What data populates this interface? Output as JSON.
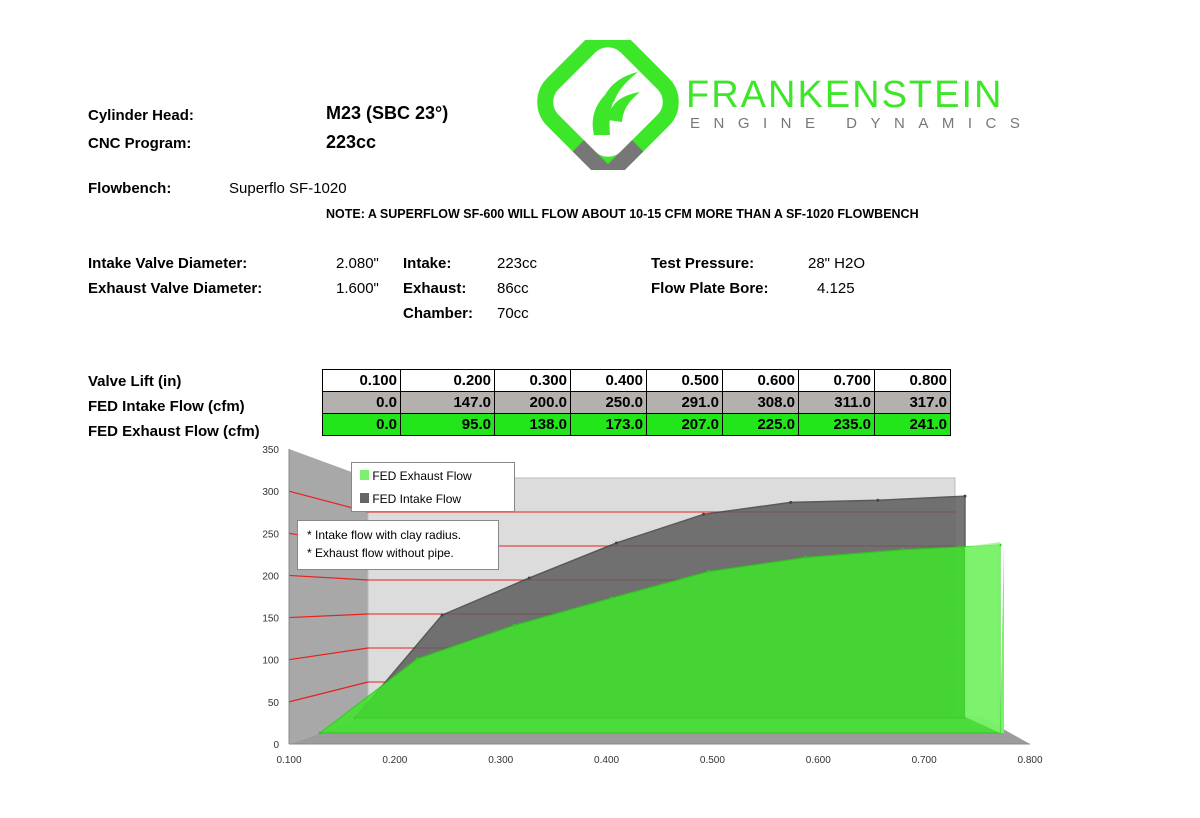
{
  "logo": {
    "name": "FRANKENSTEIN",
    "tagline": "ENGINE DYNAMICS",
    "brand_color": "#3ee62a"
  },
  "header": {
    "cylinder_head_label": "Cylinder Head:",
    "cylinder_head_value": "M23 (SBC 23°)",
    "cnc_label": "CNC Program:",
    "cnc_value": "223cc"
  },
  "flowbench": {
    "label": "Flowbench:",
    "value": "Superflo SF-1020",
    "note": "NOTE: A SUPERFLOW SF-600 WILL FLOW ABOUT 10-15 CFM MORE THAN A SF-1020 FLOWBENCH"
  },
  "specs": {
    "intake_valve_label": "Intake Valve Diameter:",
    "intake_valve_value": "2.080\"",
    "exhaust_valve_label": "Exhaust Valve Diameter:",
    "exhaust_valve_value": "1.600\"",
    "intake_label": "Intake:",
    "intake_value": "223cc",
    "exhaust_label": "Exhaust:",
    "exhaust_value": "86cc",
    "chamber_label": "Chamber:",
    "chamber_value": "70cc",
    "test_pressure_label": "Test Pressure:",
    "test_pressure_value": "28\" H2O",
    "plate_bore_label": "Flow Plate Bore:",
    "plate_bore_value": "4.125"
  },
  "table": {
    "row_labels": [
      "Valve Lift (in)",
      "FED Intake Flow (cfm)",
      "FED Exhaust Flow (cfm)"
    ],
    "lift": [
      "0.100",
      "0.200",
      "0.300",
      "0.400",
      "0.500",
      "0.600",
      "0.700",
      "0.800"
    ],
    "intake": [
      "0.0",
      "147.0",
      "200.0",
      "250.0",
      "291.0",
      "308.0",
      "311.0",
      "317.0"
    ],
    "exhaust": [
      "0.0",
      "95.0",
      "138.0",
      "173.0",
      "207.0",
      "225.0",
      "235.0",
      "241.0"
    ],
    "colors": {
      "intake": "#b4b0ae",
      "exhaust": "#22e61a"
    }
  },
  "chart_data": {
    "type": "area",
    "style": "3d",
    "x": [
      0.1,
      0.2,
      0.3,
      0.4,
      0.5,
      0.6,
      0.7,
      0.8
    ],
    "x_tick_labels": [
      "0.100",
      "0.200",
      "0.300",
      "0.400",
      "0.500",
      "0.600",
      "0.700",
      "0.800"
    ],
    "y_tick_labels": [
      "0",
      "50",
      "100",
      "150",
      "200",
      "250",
      "300",
      "350"
    ],
    "ylim": [
      0,
      350
    ],
    "grid": true,
    "grid_color": "#e8201e",
    "legend_position": "top-left",
    "series": [
      {
        "name": "FED Exhaust Flow",
        "color": "#3ee62a",
        "values": [
          0,
          95,
          138,
          173,
          207,
          225,
          235,
          241
        ]
      },
      {
        "name": "FED Intake Flow",
        "color": "#6a6a6a",
        "values": [
          0,
          147,
          200,
          250,
          291,
          308,
          311,
          317
        ]
      }
    ],
    "annotations": [
      "* Intake flow with clay radius.",
      "* Exhaust flow without pipe."
    ]
  }
}
